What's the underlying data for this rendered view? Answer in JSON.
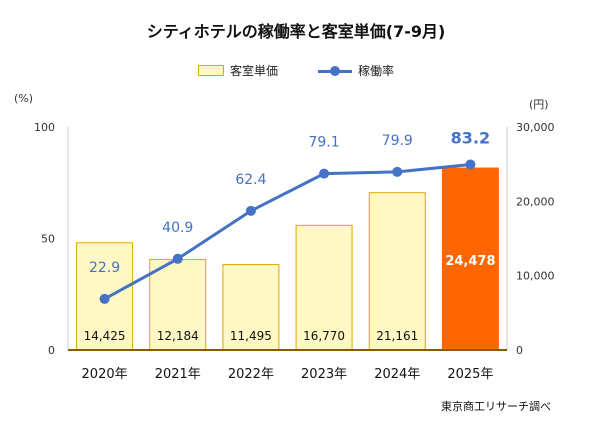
{
  "chart_data": {
    "type": "bar",
    "title": "シティホテルの稼働率と客室単価(7-9月)",
    "categories": [
      "2020年",
      "2021年",
      "2022年",
      "2023年",
      "2024年",
      "2025年"
    ],
    "series": [
      {
        "name": "客室単価",
        "type": "bar",
        "axis": "right",
        "values": [
          14425,
          12184,
          11495,
          16770,
          21161,
          24478
        ],
        "labels": [
          "14,425",
          "12,184",
          "11,495",
          "16,770",
          "21,161",
          "24,478"
        ],
        "color": "#fff8c4",
        "border_color": "#e0a800",
        "highlight_color": "#ff6600",
        "highlight_index": 5
      },
      {
        "name": "稼働率",
        "type": "line",
        "axis": "left",
        "values": [
          22.9,
          40.9,
          62.4,
          79.1,
          79.9,
          83.2
        ],
        "labels": [
          "22.9",
          "40.9",
          "62.4",
          "79.1",
          "79.9",
          "83.2"
        ],
        "color": "#4472c4"
      }
    ],
    "y_left": {
      "unit": "(%)",
      "ylim": [
        0,
        100
      ],
      "ticks": [
        "0",
        "50",
        "100"
      ]
    },
    "y_right": {
      "unit": "(円)",
      "ylim": [
        0,
        30000
      ],
      "ticks": [
        "0",
        "10,000",
        "20,000",
        "30,000"
      ]
    },
    "legend": "top-center",
    "grid": false,
    "source": "東京商工リサーチ調べ"
  }
}
